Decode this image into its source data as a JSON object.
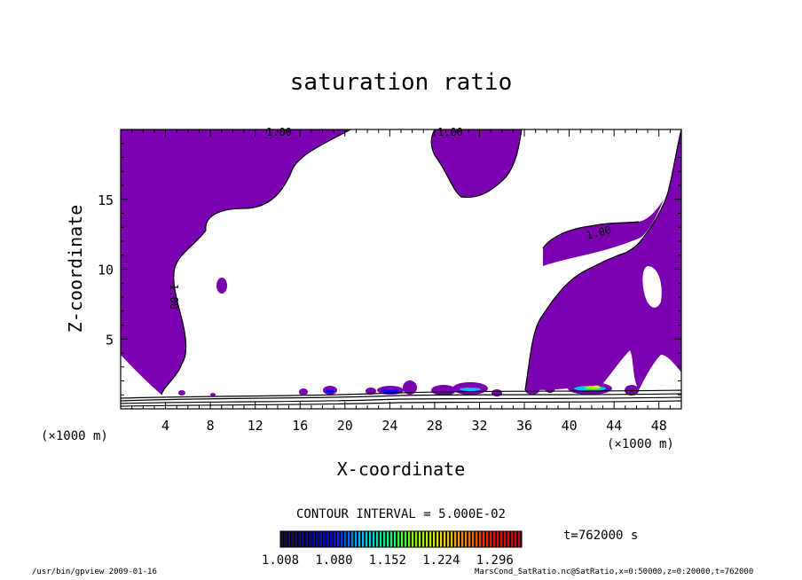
{
  "chart_data": {
    "type": "contour",
    "title": "saturation ratio",
    "xlabel": "X-coordinate",
    "ylabel": "Z-coordinate",
    "x_unit_label": "(×1000 m)",
    "y_unit_label": "(×1000 m)",
    "xlim": [
      0,
      50
    ],
    "ylim": [
      0,
      20
    ],
    "xticks": [
      4,
      8,
      12,
      16,
      20,
      24,
      28,
      32,
      36,
      40,
      44,
      48
    ],
    "yticks": [
      5,
      10,
      15
    ],
    "xtick_labels": [
      "4",
      "8",
      "12",
      "16",
      "20",
      "24",
      "28",
      "32",
      "36",
      "40",
      "44",
      "48"
    ],
    "ytick_labels": [
      "5",
      "10",
      "15"
    ],
    "contour_labels": [
      "1.00",
      "1.00",
      "1.00",
      "1.00"
    ],
    "contour_interval_text": "CONTOUR INTERVAL = 5.000E-02",
    "time_text": "t=762000 s",
    "colorbar": {
      "min": 1.008,
      "max": 1.332,
      "tick_labels": [
        "1.008",
        "1.080",
        "1.152",
        "1.224",
        "1.296"
      ],
      "tick_values": [
        1.008,
        1.08,
        1.152,
        1.224,
        1.296
      ],
      "colors": [
        "#1a0033",
        "#00008b",
        "#0000ff",
        "#00bfff",
        "#00ff80",
        "#80ff00",
        "#e6e600",
        "#ff8000",
        "#ff0000",
        "#cc0000"
      ]
    },
    "fill_color": "#7b00b0"
  },
  "footer": {
    "left": "/usr/bin/gpview   2009-01-16",
    "right": "MarsCond_SatRatio.nc@SatRatio,x=0:50000,z=0:20000,t=762000"
  }
}
